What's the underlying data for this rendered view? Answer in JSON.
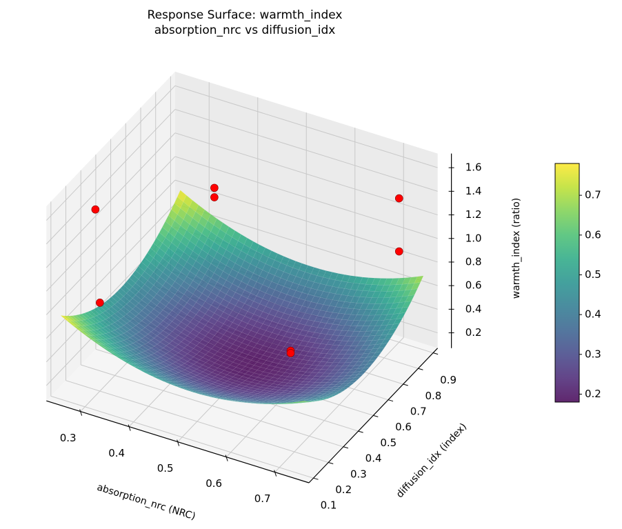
{
  "chart_data": {
    "type": "surface3d",
    "title": "Response Surface: warmth_index",
    "subtitle": "absorption_nrc vs diffusion_idx",
    "xlabel": "absorption_nrc (NRC)",
    "ylabel": "diffusion_idx (index)",
    "zlabel": "warmth_index (ratio)",
    "xlim": [
      0.23,
      0.77
    ],
    "ylim": [
      0.07,
      0.93
    ],
    "zlim": [
      0.07,
      1.72
    ],
    "x_ticks": [
      "0.3",
      "0.4",
      "0.5",
      "0.6",
      "0.7"
    ],
    "y_ticks": [
      "0.1",
      "0.2",
      "0.3",
      "0.4",
      "0.5",
      "0.6",
      "0.7",
      "0.8",
      "0.9"
    ],
    "z_ticks": [
      "0.2",
      "0.4",
      "0.6",
      "0.8",
      "1.0",
      "1.2",
      "1.4",
      "1.6"
    ],
    "grid": true,
    "surface": {
      "x_range": [
        0.25,
        0.75
      ],
      "y_range": [
        0.1,
        0.9
      ],
      "model": "z = 0.18 + 0.3*((x-0.52)/0.27)^2 + 0.3*((y-0.5)/0.4)^2",
      "colormap": "viridis",
      "alpha": 0.85
    },
    "points": [
      {
        "x": 0.3,
        "y": 0.17,
        "z": 1.65
      },
      {
        "x": 0.3,
        "y": 0.2,
        "z": 0.82
      },
      {
        "x": 0.32,
        "y": 0.9,
        "z": 0.89
      },
      {
        "x": 0.32,
        "y": 0.9,
        "z": 0.81
      },
      {
        "x": 0.7,
        "y": 0.9,
        "z": 1.29
      },
      {
        "x": 0.7,
        "y": 0.9,
        "z": 0.84
      },
      {
        "x": 0.6,
        "y": 0.5,
        "z": 0.4
      },
      {
        "x": 0.6,
        "y": 0.5,
        "z": 0.38
      }
    ],
    "point_color": "#ff0000",
    "colorbar": {
      "range": [
        0.18,
        0.78
      ],
      "ticks": [
        "0.2",
        "0.3",
        "0.4",
        "0.5",
        "0.6",
        "0.7"
      ]
    }
  }
}
